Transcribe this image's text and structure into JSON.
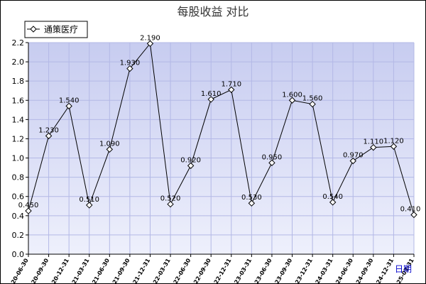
{
  "chart_data": {
    "type": "line",
    "title": "每股收益  对比",
    "xlabel": "日期",
    "ylabel": "",
    "ylim": [
      0,
      2.2
    ],
    "yticks": [
      "0.0",
      "0.2",
      "0.4",
      "0.6",
      "0.8",
      "1.0",
      "1.2",
      "1.4",
      "1.6",
      "1.8",
      "2.0",
      "2.2"
    ],
    "grid": true,
    "legend_position": "top-left",
    "categories": [
      "2020-06-30",
      "2020-09-30",
      "2020-12-31",
      "2021-03-31",
      "2021-06-30",
      "2021-09-30",
      "2021-12-31",
      "2022-03-31",
      "2022-06-30",
      "2022-09-30",
      "2022-12-31",
      "2023-03-31",
      "2023-06-30",
      "2023-09-30",
      "2023-12-31",
      "2024-03-31",
      "2024-06-30",
      "2024-09-30",
      "2024-12-31",
      "2025-03-31"
    ],
    "series": [
      {
        "name": "通策医疗",
        "values": [
          0.45,
          1.23,
          1.54,
          0.51,
          1.09,
          1.93,
          2.19,
          0.52,
          0.92,
          1.61,
          1.71,
          0.53,
          0.95,
          1.6,
          1.56,
          0.54,
          0.97,
          1.11,
          1.12,
          0.41
        ],
        "labels": [
          "0.450",
          "1.230",
          "1.540",
          "0.510",
          "1.090",
          "1.930",
          "2.190",
          "0.520",
          "0.920",
          "1.610",
          "1.710",
          "0.530",
          "0.950",
          "1.600",
          "1.560",
          "0.540",
          "0.970",
          "1.110",
          "1.120",
          "0.410"
        ]
      }
    ],
    "colors": {
      "plot_bg_top": "#c7ccf0",
      "plot_bg_bottom": "#eef0fc",
      "grid": "#b3b8e6",
      "line": "#000000",
      "marker_fill": "#ffffff"
    }
  }
}
